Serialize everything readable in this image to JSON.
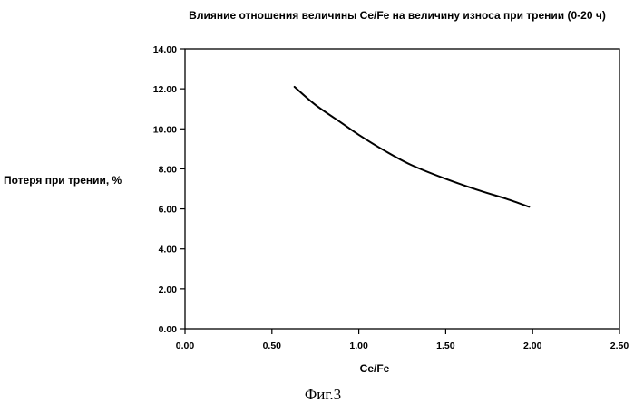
{
  "chart_data": {
    "type": "line",
    "title": "Влияние отношения величины Ce/Fe на величину износа при трении (0-20 ч)",
    "xlabel": "Ce/Fe",
    "ylabel": "Потеря при трении, %",
    "xlim": [
      0,
      2.5
    ],
    "ylim": [
      0,
      14
    ],
    "x_ticks": [
      0,
      0.5,
      1,
      1.5,
      2,
      2.5
    ],
    "y_ticks": [
      0,
      2,
      4,
      6,
      8,
      10,
      12,
      14
    ],
    "x_tick_labels": [
      "0.00",
      "0.50",
      "1.00",
      "1.50",
      "2.00",
      "2.50"
    ],
    "y_tick_labels": [
      "0.00",
      "2.00",
      "4.00",
      "6.00",
      "8.00",
      "10.00",
      "12.00",
      "14.00"
    ],
    "grid": false,
    "series": [
      {
        "x": [
          0.63,
          0.75,
          0.9,
          1.0,
          1.15,
          1.3,
          1.5,
          1.7,
          1.85,
          1.98
        ],
        "y": [
          12.1,
          11.2,
          10.3,
          9.7,
          8.9,
          8.2,
          7.5,
          6.9,
          6.5,
          6.1
        ]
      }
    ],
    "line_color": "#000000"
  },
  "caption": "Фиг.3"
}
